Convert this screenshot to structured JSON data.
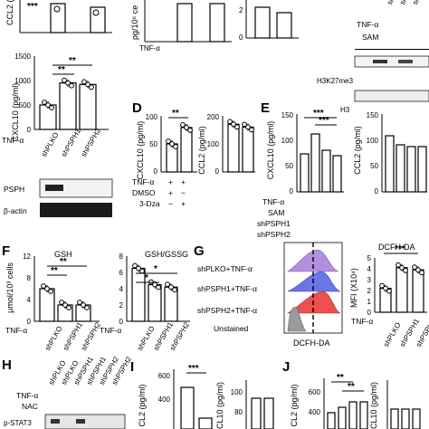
{
  "panels": {
    "D": "D",
    "E": "E",
    "F": "F",
    "G": "G",
    "H": "H",
    "I": "I",
    "J": "J"
  },
  "common": {
    "tnf": "TNF-α",
    "plus": "+",
    "minus": "−",
    "shPLKO": "shPLKO",
    "shPSPH1": "shPSPH1",
    "shPSPH2": "shPSPH2"
  },
  "sig": {
    "s2": "**",
    "s3": "***",
    "s1": "*"
  },
  "top_row": {
    "a_ylabel": "CCL2 (",
    "a_stars": "***",
    "b_ylabel": "pg/10⁶ ce",
    "c_tick": "2",
    "c_tick0": "0",
    "h3k27": "H3K27me3",
    "h3": "H3",
    "sam": "SAM",
    "sh_fragment": "sh"
  },
  "cxcl_panel": {
    "ylabel": "CXCL10 (pg/ml)",
    "ticks": [
      "0",
      "500",
      "1000",
      "1500"
    ],
    "blot_psph": "PSPH",
    "blot_actin": "β-actin"
  },
  "panel_d": {
    "y1": "CXCL10 (pg/ml)",
    "y1_ticks": [
      "0",
      "50",
      "100"
    ],
    "y2": "CCL2 (pg/ml)",
    "y2_ticks": [
      "0",
      "100",
      "200"
    ],
    "dmso": "DMSO",
    "dza": "3-Dza"
  },
  "panel_e": {
    "y1": "CXCL10 (pg/ml)",
    "y1_ticks": [
      "0",
      "50",
      "100",
      "150"
    ],
    "y2": "CCL2 (pg/ml)",
    "y2_ticks": [
      "0",
      "50",
      "100",
      "150"
    ],
    "sam": "SAM"
  },
  "panel_f": {
    "title1": "GSH",
    "title2": "GSH/GSSG",
    "ylabel": "μmol/10³ cells",
    "ticks1": [
      "0",
      "4",
      "8",
      "12"
    ],
    "ticks2": [
      "0",
      "2",
      "4",
      "6",
      "8"
    ]
  },
  "panel_g": {
    "rows": [
      "shPLKO+TNF-α",
      "shPSPH1+TNF-α",
      "shPSPH2+TNF-α",
      "Unstained"
    ],
    "xlabel": "DCFH-DA",
    "bar_title": "DCFH-DA",
    "bar_ylabel": "MFI (X10⁴)",
    "bar_ticks": [
      "0",
      "1",
      "2",
      "3",
      "4",
      "5"
    ]
  },
  "panel_h": {
    "nac": "NAC",
    "stat": "p-STAT3"
  },
  "panel_i": {
    "y1": "CL2 (pg/ml)",
    "y2": "CL10 (pg/ml)",
    "t1": [
      "400",
      "600"
    ],
    "t2": [
      "80",
      "100"
    ]
  },
  "panel_j": {
    "y1": "CL2 (pg/ml)",
    "y2": "CL10 (pg/ml)",
    "t1": [
      "400",
      "600"
    ],
    "t2": [
      "80",
      "100"
    ]
  },
  "chart_data": [
    {
      "type": "bar",
      "ylabel": "CXCL10 (pg/ml)",
      "categories": [
        "shPLKO",
        "shPSPH1",
        "shPSPH2"
      ],
      "values": [
        500,
        950,
        920
      ],
      "ylim": [
        0,
        1500
      ]
    },
    {
      "type": "bar",
      "ylabel": "CXCL10 (pg/ml)",
      "categories": [
        "TNF-α",
        "TNF-α + 3-Dza"
      ],
      "values": [
        60,
        95
      ],
      "ylim": [
        0,
        120
      ]
    },
    {
      "type": "bar",
      "ylabel": "CCL2 (pg/ml)",
      "categories": [
        "TNF-α",
        "TNF-α + 3-Dza"
      ],
      "values": [
        170,
        160
      ],
      "ylim": [
        0,
        200
      ]
    },
    {
      "type": "bar",
      "title": "GSH",
      "ylabel": "μmol/10³ cells",
      "categories": [
        "shPLKO",
        "shPSPH1",
        "shPSPH2"
      ],
      "values": [
        6,
        3,
        3
      ],
      "ylim": [
        0,
        12
      ]
    },
    {
      "type": "bar",
      "title": "GSH/GSSG",
      "categories": [
        "shPLKO",
        "shPSPH1",
        "shPSPH2"
      ],
      "values": [
        6.5,
        4.5,
        4.2
      ],
      "ylim": [
        0,
        8
      ]
    },
    {
      "type": "bar",
      "title": "DCFH-DA",
      "ylabel": "MFI (X10⁴)",
      "categories": [
        "shPLKO",
        "shPSPH1",
        "shPSPH2"
      ],
      "values": [
        2.2,
        4.1,
        3.9
      ],
      "ylim": [
        0,
        5
      ]
    }
  ]
}
